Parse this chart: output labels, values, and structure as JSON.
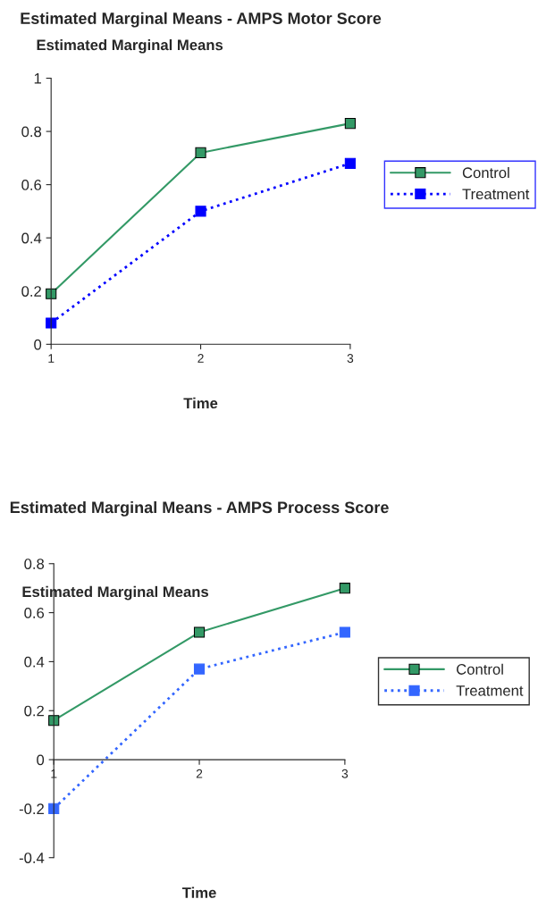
{
  "chart_data": [
    {
      "type": "line",
      "title": "Estimated Marginal Means - AMPS Motor Score",
      "ylabel": "Estimated Marginal Means",
      "xlabel": "Time",
      "x": [
        1,
        2,
        3
      ],
      "xlim": [
        1,
        3
      ],
      "xticks": [
        1,
        2,
        3
      ],
      "ylim": [
        0,
        1
      ],
      "yticks": [
        0,
        0.2,
        0.4,
        0.6,
        0.8,
        1
      ],
      "marker": "square",
      "grid": false,
      "legend": "right",
      "series": [
        {
          "name": "Control",
          "color": "#339966",
          "line_style": "solid",
          "values": [
            0.19,
            0.72,
            0.83
          ]
        },
        {
          "name": "Treatment",
          "color": "#0000ff",
          "line_style": "dotted",
          "values": [
            0.08,
            0.5,
            0.68
          ]
        }
      ]
    },
    {
      "type": "line",
      "title": "Estimated Marginal Means - AMPS Process Score",
      "ylabel": "Estimated Marginal Means",
      "xlabel": "Time",
      "x": [
        1,
        2,
        3
      ],
      "xlim": [
        1,
        3
      ],
      "xticks": [
        1,
        2,
        3
      ],
      "ylim": [
        -0.4,
        0.8
      ],
      "yticks": [
        -0.4,
        -0.2,
        0,
        0.2,
        0.4,
        0.6,
        0.8
      ],
      "marker": "square",
      "grid": false,
      "legend": "right",
      "series": [
        {
          "name": "Control",
          "color": "#339966",
          "line_style": "solid",
          "values": [
            0.16,
            0.52,
            0.7
          ]
        },
        {
          "name": "Treatment",
          "color": "#3366ff",
          "line_style": "dotted",
          "values": [
            -0.2,
            0.37,
            0.52
          ]
        }
      ]
    }
  ]
}
